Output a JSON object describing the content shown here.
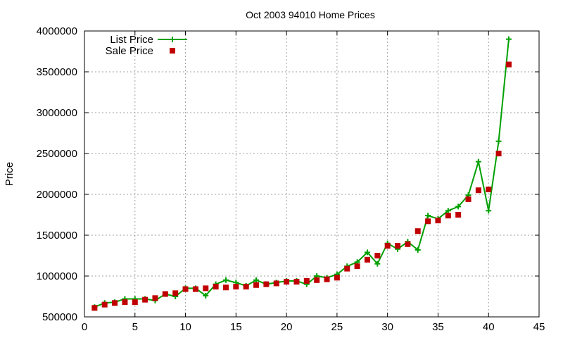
{
  "chart_data": {
    "type": "line",
    "title": "Oct 2003 94010 Home Prices",
    "xlabel": "",
    "ylabel": "Price",
    "xlim": [
      0,
      45
    ],
    "ylim": [
      500000,
      4000000
    ],
    "xticks": [
      0,
      5,
      10,
      15,
      20,
      25,
      30,
      35,
      40,
      45
    ],
    "yticks": [
      500000,
      1000000,
      1500000,
      2000000,
      2500000,
      3000000,
      3500000,
      4000000
    ],
    "grid": true,
    "legend_position": "top-left",
    "x": [
      1,
      2,
      3,
      4,
      5,
      6,
      7,
      8,
      9,
      10,
      11,
      12,
      13,
      14,
      15,
      16,
      17,
      18,
      19,
      20,
      21,
      22,
      23,
      24,
      25,
      26,
      27,
      28,
      29,
      30,
      31,
      32,
      33,
      34,
      35,
      36,
      37,
      38,
      39,
      40,
      41,
      42
    ],
    "series": [
      {
        "name": "List Price",
        "style": "line-with-plus-markers",
        "color": "#00a000",
        "values": [
          620000,
          670000,
          680000,
          720000,
          720000,
          720000,
          700000,
          780000,
          750000,
          850000,
          850000,
          760000,
          900000,
          950000,
          920000,
          880000,
          950000,
          900000,
          920000,
          940000,
          940000,
          900000,
          1000000,
          980000,
          1020000,
          1120000,
          1170000,
          1290000,
          1150000,
          1400000,
          1330000,
          1420000,
          1320000,
          1740000,
          1700000,
          1800000,
          1850000,
          1990000,
          2400000,
          1800000,
          2650000,
          3900000
        ]
      },
      {
        "name": "Sale Price",
        "style": "square-markers",
        "color": "#c00000",
        "values": [
          610000,
          650000,
          670000,
          680000,
          680000,
          710000,
          730000,
          780000,
          790000,
          840000,
          840000,
          850000,
          870000,
          860000,
          870000,
          870000,
          890000,
          900000,
          910000,
          930000,
          930000,
          940000,
          950000,
          960000,
          980000,
          1090000,
          1120000,
          1200000,
          1250000,
          1370000,
          1370000,
          1390000,
          1550000,
          1670000,
          1680000,
          1740000,
          1750000,
          1940000,
          2050000,
          2060000,
          2500000,
          3590000
        ]
      }
    ]
  }
}
